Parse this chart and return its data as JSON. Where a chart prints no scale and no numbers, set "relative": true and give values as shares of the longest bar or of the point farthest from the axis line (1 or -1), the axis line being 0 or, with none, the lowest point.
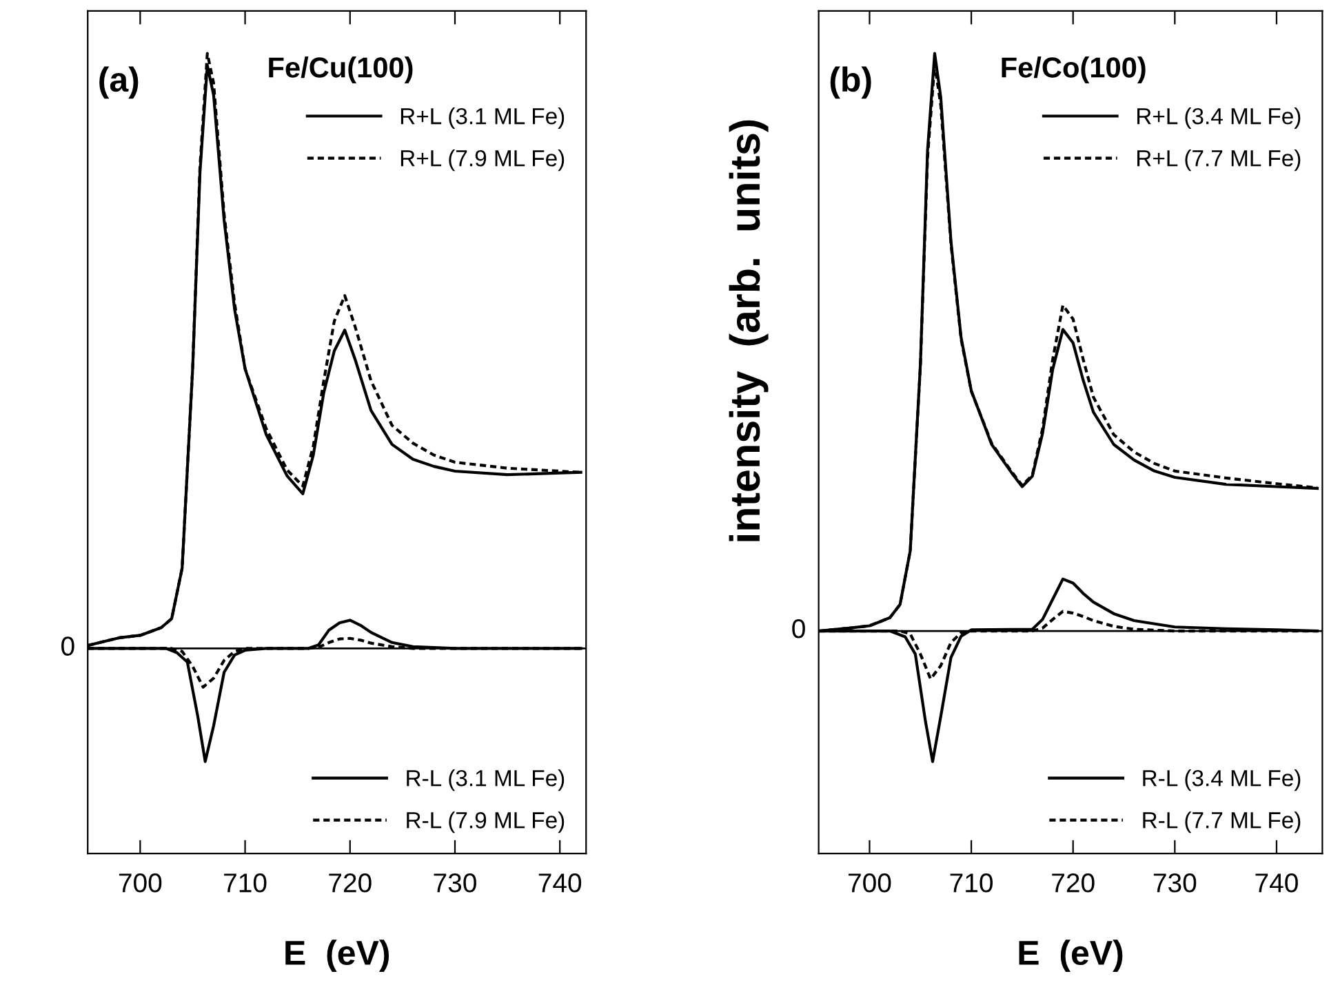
{
  "chart_data": [
    {
      "type": "line",
      "title": "Fe/Cu(100)",
      "xlabel": "E  (eV)",
      "annotations": [
        "(a)"
      ],
      "relative": true,
      "xlim": [
        695,
        742.5
      ],
      "xticks": [
        700,
        710,
        720,
        730,
        740
      ],
      "legend": "right",
      "grid": false,
      "ref_lines": [
        {
          "axis": "y",
          "value": 0,
          "label": "0",
          "color": "#000000"
        }
      ],
      "series": [
        {
          "name": "R+L (3.1 ML Fe)",
          "color": "#000000",
          "line_style": "solid",
          "x": [
            695,
            698,
            700,
            702,
            703,
            704,
            705,
            705.7,
            706.4,
            707,
            708,
            709,
            710,
            712,
            714,
            715.5,
            716.5,
            717.5,
            718.5,
            719.5,
            720.5,
            722,
            724,
            726,
            728,
            730,
            735,
            740,
            742
          ],
          "values": [
            0.005,
            0.018,
            0.022,
            0.035,
            0.05,
            0.135,
            0.47,
            0.8,
            0.98,
            0.93,
            0.72,
            0.57,
            0.47,
            0.36,
            0.29,
            0.26,
            0.325,
            0.43,
            0.5,
            0.535,
            0.485,
            0.4,
            0.343,
            0.318,
            0.306,
            0.298,
            0.292,
            0.295,
            0.296
          ]
        },
        {
          "name": "R+L (7.9 ML Fe)",
          "color": "#000000",
          "line_style": "dashed",
          "x": [
            695,
            698,
            700,
            702,
            703,
            704,
            705,
            705.7,
            706.4,
            707,
            708,
            709,
            710,
            712,
            714,
            715.5,
            716.5,
            717.5,
            718.5,
            719.5,
            720.5,
            722,
            724,
            726,
            728,
            730,
            735,
            740,
            742
          ],
          "values": [
            0.005,
            0.018,
            0.022,
            0.035,
            0.05,
            0.135,
            0.47,
            0.81,
            1.0,
            0.95,
            0.73,
            0.58,
            0.47,
            0.37,
            0.3,
            0.273,
            0.34,
            0.45,
            0.55,
            0.593,
            0.54,
            0.45,
            0.375,
            0.345,
            0.325,
            0.313,
            0.303,
            0.298,
            0.296
          ]
        },
        {
          "name": "R-L (3.1 ML Fe)",
          "color": "#000000",
          "line_style": "solid",
          "x": [
            695,
            702.5,
            703.5,
            704.5,
            705.5,
            706.2,
            707,
            708,
            709,
            710,
            712,
            716,
            717,
            718,
            719,
            720,
            721,
            722,
            724,
            726,
            730,
            742
          ],
          "values": [
            0,
            0,
            -0.007,
            -0.023,
            -0.115,
            -0.19,
            -0.13,
            -0.04,
            -0.011,
            -0.003,
            0,
            0,
            0.006,
            0.031,
            0.043,
            0.0475,
            0.039,
            0.027,
            0.01,
            0.003,
            0,
            0
          ]
        },
        {
          "name": "R-L (7.9 ML Fe)",
          "color": "#000000",
          "line_style": "dashed",
          "x": [
            695,
            703,
            704,
            705,
            706,
            707,
            708,
            709,
            710,
            716,
            717,
            718,
            719,
            720,
            721,
            722,
            724,
            726,
            742
          ],
          "values": [
            0,
            0,
            -0.005,
            -0.03,
            -0.065,
            -0.05,
            -0.02,
            -0.005,
            0,
            0,
            0.002,
            0.01,
            0.016,
            0.017,
            0.014,
            0.009,
            0.003,
            0,
            0
          ]
        }
      ]
    },
    {
      "type": "line",
      "title": "Fe/Co(100)",
      "xlabel": "E  (eV)",
      "ylabel": "intensity  (arb.  units)",
      "annotations": [
        "(b)"
      ],
      "relative": true,
      "xlim": [
        695,
        744.5
      ],
      "xticks": [
        700,
        710,
        720,
        730,
        740
      ],
      "legend": "right",
      "grid": false,
      "ref_lines": [
        {
          "axis": "y",
          "value": 0,
          "label": "0",
          "color": "#000000"
        }
      ],
      "series": [
        {
          "name": "R+L (3.4 ML Fe)",
          "color": "#000000",
          "line_style": "solid",
          "x": [
            695,
            698,
            700,
            702,
            703,
            704,
            705,
            705.7,
            706.4,
            707,
            708,
            709,
            710,
            712,
            714,
            715,
            716,
            717,
            718,
            719,
            720,
            721,
            722,
            724,
            726,
            728,
            730,
            735,
            740,
            744
          ],
          "values": [
            0,
            0.005,
            0.009,
            0.023,
            0.046,
            0.139,
            0.462,
            0.832,
            1.0,
            0.924,
            0.675,
            0.508,
            0.416,
            0.323,
            0.273,
            0.25,
            0.268,
            0.342,
            0.453,
            0.522,
            0.499,
            0.434,
            0.379,
            0.323,
            0.296,
            0.277,
            0.266,
            0.254,
            0.25,
            0.247
          ]
        },
        {
          "name": "R+L (7.7 ML Fe)",
          "color": "#000000",
          "line_style": "dashed",
          "x": [
            695,
            698,
            700,
            702,
            703,
            704,
            705,
            705.7,
            706.4,
            707,
            708,
            709,
            710,
            712,
            714,
            715,
            716,
            717,
            718,
            719,
            720,
            721,
            722,
            724,
            726,
            728,
            730,
            735,
            740,
            744
          ],
          "values": [
            0,
            0.005,
            0.009,
            0.023,
            0.046,
            0.139,
            0.46,
            0.82,
            0.982,
            0.91,
            0.67,
            0.505,
            0.415,
            0.325,
            0.275,
            0.252,
            0.27,
            0.35,
            0.47,
            0.564,
            0.54,
            0.47,
            0.405,
            0.34,
            0.31,
            0.29,
            0.277,
            0.265,
            0.255,
            0.248
          ]
        },
        {
          "name": "R-L (3.4 ML Fe)",
          "color": "#000000",
          "line_style": "solid",
          "x": [
            695,
            702,
            703.5,
            704.5,
            705.5,
            706.2,
            707,
            708,
            709,
            710,
            716,
            717,
            718,
            719,
            720,
            721,
            722,
            724,
            726,
            730,
            735,
            740,
            744
          ],
          "values": [
            0,
            0,
            -0.01,
            -0.04,
            -0.157,
            -0.226,
            -0.148,
            -0.046,
            -0.009,
            0.002,
            0.003,
            0.02,
            0.055,
            0.09,
            0.083,
            0.065,
            0.05,
            0.03,
            0.018,
            0.007,
            0.004,
            0.002,
            0
          ]
        },
        {
          "name": "R-L (7.7 ML Fe)",
          "color": "#000000",
          "line_style": "dashed",
          "x": [
            695,
            703,
            704,
            705,
            706,
            707,
            708,
            709,
            710,
            716,
            717,
            718,
            719,
            720,
            721,
            722,
            724,
            726,
            730,
            744
          ],
          "values": [
            0,
            0,
            -0.005,
            -0.04,
            -0.083,
            -0.06,
            -0.02,
            -0.003,
            0,
            0,
            0.005,
            0.02,
            0.034,
            0.031,
            0.025,
            0.018,
            0.008,
            0.003,
            0,
            0
          ]
        }
      ]
    }
  ]
}
